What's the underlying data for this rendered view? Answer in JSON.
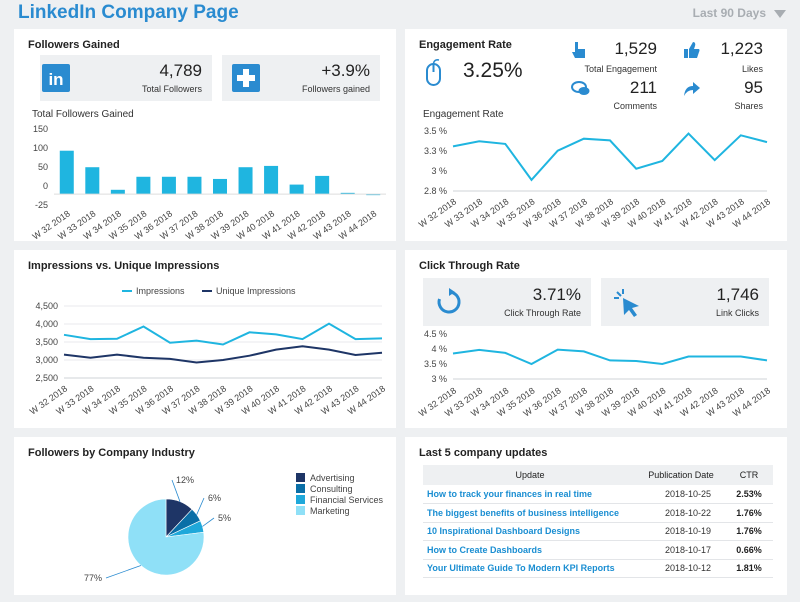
{
  "header": {
    "title": "LinkedIn Company Page",
    "date_range": "Last 90 Days"
  },
  "weeks": [
    "W 32 2018",
    "W 33 2018",
    "W 34 2018",
    "W 35 2018",
    "W 36 2018",
    "W 37 2018",
    "W 38 2018",
    "W 39 2018",
    "W 40 2018",
    "W 41 2018",
    "W 42 2018",
    "W 43 2018",
    "W 44 2018"
  ],
  "followers_panel": {
    "title": "Followers Gained",
    "total_followers": {
      "value": "4,789",
      "label": "Total Followers",
      "icon": "linkedin-logo-icon"
    },
    "followers_gained": {
      "value": "+3.9%",
      "label": "Followers gained",
      "icon": "plus-icon"
    },
    "chart_title": "Total Followers Gained"
  },
  "engagement_panel": {
    "title": "Engagement Rate",
    "rate": {
      "value": "3.25%",
      "icon": "mouse-icon"
    },
    "total_engagement": {
      "value": "1,529",
      "label": "Total Engagement",
      "icon": "pointer-hand-icon"
    },
    "likes": {
      "value": "1,223",
      "label": "Likes",
      "icon": "thumbs-up-icon"
    },
    "comments": {
      "value": "211",
      "label": "Comments",
      "icon": "comments-icon"
    },
    "shares": {
      "value": "95",
      "label": "Shares",
      "icon": "share-arrow-icon"
    },
    "chart_title": "Engagement Rate"
  },
  "impressions_panel": {
    "title": "Impressions vs. Unique Impressions"
  },
  "ctr_panel": {
    "title": "Click Through Rate",
    "rate": {
      "value": "3.71%",
      "label": "Click Through Rate",
      "icon": "refresh-icon"
    },
    "link_clicks": {
      "value": "1,746",
      "label": "Link Clicks",
      "icon": "cursor-click-icon"
    }
  },
  "industry_panel": {
    "title": "Followers by Company Industry"
  },
  "updates_panel": {
    "title": "Last 5 company updates",
    "columns": [
      "Update",
      "Publication Date",
      "CTR"
    ],
    "rows": [
      {
        "update": "How to track your finances in real time",
        "date": "2018-10-25",
        "ctr": "2.53%"
      },
      {
        "update": "The biggest benefits of business intelligence",
        "date": "2018-10-22",
        "ctr": "1.76%"
      },
      {
        "update": "10 Inspirational Dashboard Designs",
        "date": "2018-10-19",
        "ctr": "1.76%"
      },
      {
        "update": "How to Create Dashboards",
        "date": "2018-10-17",
        "ctr": "0.66%"
      },
      {
        "update": "Your Ultimate Guide To Modern KPI Reports",
        "date": "2018-10-12",
        "ctr": "1.81%"
      }
    ]
  },
  "colors": {
    "accent": "#1fb5e0",
    "dark": "#1e3566",
    "title": "#2a8bd0",
    "pie_light": "#8fe0f7",
    "mid": "#0a6fa7"
  },
  "chart_data": [
    {
      "type": "bar",
      "categories": [
        "W 32 2018",
        "W 33 2018",
        "W 34 2018",
        "W 35 2018",
        "W 36 2018",
        "W 37 2018",
        "W 38 2018",
        "W 39 2018",
        "W 40 2018",
        "W 41 2018",
        "W 42 2018",
        "W 43 2018",
        "W 44 2018"
      ],
      "values": [
        100,
        62,
        10,
        40,
        40,
        40,
        35,
        62,
        65,
        22,
        42,
        3,
        0
      ],
      "ylim": [
        -25,
        150
      ],
      "yticks": [
        "150",
        "100",
        "50",
        "0",
        "-25"
      ]
    },
    {
      "type": "line",
      "categories": [
        "W 32 2018",
        "W 33 2018",
        "W 34 2018",
        "W 35 2018",
        "W 36 2018",
        "W 37 2018",
        "W 38 2018",
        "W 39 2018",
        "W 40 2018",
        "W 41 2018",
        "W 42 2018",
        "W 43 2018",
        "W 44 2018"
      ],
      "values": [
        3.32,
        3.38,
        3.35,
        2.93,
        3.27,
        3.41,
        3.39,
        3.06,
        3.15,
        3.47,
        3.16,
        3.45,
        3.37
      ],
      "ylim": [
        2.8,
        3.5
      ],
      "yticks": [
        "3.5 %",
        "3.3 %",
        "3 %",
        "2.8 %"
      ]
    },
    {
      "type": "line",
      "categories": [
        "W 32 2018",
        "W 33 2018",
        "W 34 2018",
        "W 35 2018",
        "W 36 2018",
        "W 37 2018",
        "W 38 2018",
        "W 39 2018",
        "W 40 2018",
        "W 41 2018",
        "W 42 2018",
        "W 43 2018",
        "W 44 2018"
      ],
      "series": [
        {
          "name": "Impressions",
          "values": [
            3700,
            3580,
            3590,
            3930,
            3480,
            3540,
            3430,
            3770,
            3710,
            3580,
            4010,
            3580,
            3600
          ]
        },
        {
          "name": "Unique Impressions",
          "values": [
            3150,
            3060,
            3150,
            3060,
            3030,
            2930,
            3000,
            3120,
            3290,
            3380,
            3290,
            3140,
            3200
          ]
        }
      ],
      "ylim": [
        2500,
        4500
      ],
      "yticks": [
        "4,500",
        "4,000",
        "3,500",
        "3,000",
        "2,500"
      ],
      "legend_position": "top"
    },
    {
      "type": "line",
      "categories": [
        "W 32 2018",
        "W 33 2018",
        "W 34 2018",
        "W 35 2018",
        "W 36 2018",
        "W 37 2018",
        "W 38 2018",
        "W 39 2018",
        "W 40 2018",
        "W 41 2018",
        "W 42 2018",
        "W 43 2018",
        "W 44 2018"
      ],
      "values": [
        3.85,
        3.97,
        3.87,
        3.5,
        3.98,
        3.92,
        3.62,
        3.6,
        3.5,
        3.75,
        3.75,
        3.75,
        3.62
      ],
      "ylim": [
        3.0,
        4.5
      ],
      "yticks": [
        "4.5 %",
        "4 %",
        "3.5 %",
        "3 %"
      ]
    },
    {
      "type": "pie",
      "categories": [
        "Advertising",
        "Consulting",
        "Financial Services",
        "Marketing"
      ],
      "values": [
        12,
        6,
        5,
        77
      ],
      "labels": [
        "12%",
        "6%",
        "5%",
        "77%"
      ],
      "colors": [
        "#1e3566",
        "#0a6fa7",
        "#1fa8da",
        "#8fe0f7"
      ],
      "legend_position": "right"
    }
  ]
}
